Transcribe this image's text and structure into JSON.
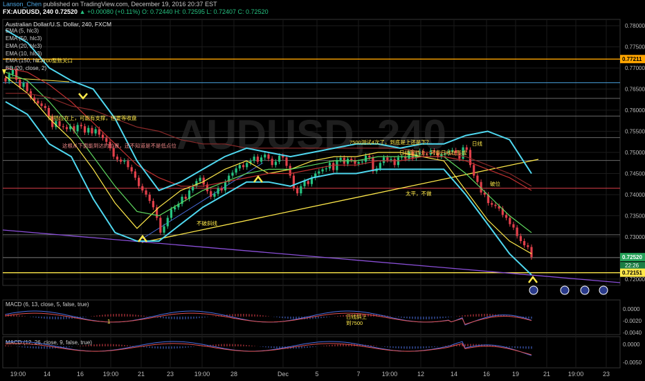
{
  "header": {
    "author": "Lanson_Chen",
    "published": "published on TradingView.com, December 19, 2016 20:37 EST",
    "symbol": "FX:AUDUSD, 240",
    "last": "0.72520",
    "change": "+0.00080 (+0.11%)",
    "ohlc": "O: 0.72440 H: 0.72595 L: 0.72407 C: 0.72520"
  },
  "main_pane": {
    "title": "Australian Dollar/U.S. Dollar, 240, FXCM",
    "indicators": [
      "EMA (5, hlc3)",
      "EMA (50, hlc3)",
      "EMA (20, hlc3)",
      "EMA (10, hlc3)",
      "EMA (150, hlc3)",
      "BB (20, close, 2)"
    ],
    "watermark": "AUDUSD, 240"
  },
  "macd1": {
    "label": "MACD (6, 13, close, 5, false, true)",
    "ticks": [
      "0.0000",
      "-0.0020",
      "-0.0040"
    ]
  },
  "macd2": {
    "label": "MACD (12, 26, close, 9, false, true)",
    "ticks": [
      "0.0000",
      "-0.0050"
    ]
  },
  "annotations": {
    "a1": "0.7700整数关口",
    "a2": "阻挡位在上，可能有支撑，但要等收盘",
    "a3": "这根从下面能到达的位置，还不知道是不是低点位",
    "a4": "7500测试4次了，到底是上还是下？",
    "a5": "日线阻挡上，可能日线在形成",
    "a6": "太平，不做",
    "a7": "破位",
    "a8": "不破斜线",
    "a9": "日线",
    "a10": "日线斜上",
    "a11": "到7500",
    "a12": "1"
  },
  "price_labels": {
    "current": "0.72520",
    "countdown": "22:26",
    "level_top": "0.77211",
    "level_bottom": "0.72151"
  },
  "colors": {
    "up": "#26c281",
    "down": "#e0404a",
    "bb": "#4fd8f0",
    "yellow": "#ffe94a",
    "orange": "#ffa500",
    "purple": "#8a4fd8"
  },
  "chart_data": {
    "type": "line",
    "title": "Australian Dollar/U.S. Dollar, 240, FXCM",
    "y_ticks": [
      0.78,
      0.775,
      0.77,
      0.765,
      0.76,
      0.755,
      0.75,
      0.745,
      0.74,
      0.735,
      0.73,
      0.725,
      0.72
    ],
    "ylim": [
      0.7185,
      0.7815
    ],
    "x_ticks": [
      "19:00",
      "14",
      "16",
      "19:00",
      "21",
      "23",
      "19:00",
      "28",
      "Dec",
      "5",
      "7",
      "19:00",
      "12",
      "14",
      "16",
      "19",
      "21",
      "19:00",
      "23",
      "26"
    ],
    "series": [
      {
        "type": "candles",
        "values": [
          0.7668,
          0.7685,
          0.7697,
          0.7672,
          0.7655,
          0.7664,
          0.7645,
          0.763,
          0.7622,
          0.7616,
          0.761,
          0.7605,
          0.7585,
          0.756,
          0.7574,
          0.7562,
          0.756,
          0.7555,
          0.7562,
          0.755,
          0.7565,
          0.7562,
          0.7547,
          0.7558,
          0.7545,
          0.7555,
          0.7542,
          0.7534,
          0.7525,
          0.751,
          0.749,
          0.7483,
          0.7478,
          0.748,
          0.7465,
          0.7455,
          0.744,
          0.742,
          0.741,
          0.74,
          0.7385,
          0.737,
          0.7345,
          0.731,
          0.7325,
          0.7345,
          0.7365,
          0.737,
          0.7378,
          0.7395,
          0.739,
          0.741,
          0.742,
          0.7432,
          0.744,
          0.7424,
          0.7408,
          0.7395,
          0.7402,
          0.7415,
          0.741,
          0.743,
          0.7445,
          0.7452,
          0.7462,
          0.747,
          0.7465,
          0.7475,
          0.748,
          0.749,
          0.7478,
          0.7488,
          0.7495,
          0.7485,
          0.747,
          0.7478,
          0.7492,
          0.7488,
          0.7468,
          0.7445,
          0.7415,
          0.7403,
          0.742,
          0.7432,
          0.7425,
          0.744,
          0.745,
          0.7455,
          0.746,
          0.7462,
          0.7475,
          0.7458,
          0.7482,
          0.7487,
          0.7473,
          0.7485,
          0.7482,
          0.7473,
          0.7477,
          0.7478,
          0.7492,
          0.7488,
          0.7455,
          0.7462,
          0.7475,
          0.7488,
          0.7482,
          0.7484,
          0.747,
          0.7488,
          0.749,
          0.7485,
          0.7502,
          0.7486,
          0.7496,
          0.7503,
          0.7496,
          0.7495,
          0.7504,
          0.75,
          0.749,
          0.7495,
          0.7498,
          0.7502,
          0.7505,
          0.7498,
          0.7485,
          0.7512,
          0.7506,
          0.747,
          0.7445,
          0.743,
          0.7405,
          0.74,
          0.738,
          0.7376,
          0.7373,
          0.7367,
          0.7352,
          0.7345,
          0.733,
          0.7322,
          0.7302,
          0.729,
          0.728,
          0.7276,
          0.7252
        ]
      },
      {
        "name": "EMA 5",
        "type": "line",
        "values": [
          0.768,
          0.764,
          0.758,
          0.753,
          0.746,
          0.738,
          0.732,
          0.737,
          0.741,
          0.743,
          0.746,
          0.748,
          0.745,
          0.746,
          0.748,
          0.749,
          0.749,
          0.75,
          0.75,
          0.749,
          0.748,
          0.741,
          0.734,
          0.729,
          0.726
        ]
      },
      {
        "name": "EMA 20",
        "type": "line",
        "values": [
          0.769,
          0.767,
          0.762,
          0.756,
          0.749,
          0.742,
          0.736,
          0.735,
          0.738,
          0.741,
          0.743,
          0.745,
          0.746,
          0.746,
          0.747,
          0.748,
          0.748,
          0.749,
          0.749,
          0.749,
          0.749,
          0.745,
          0.74,
          0.735,
          0.731
        ]
      },
      {
        "name": "EMA 50",
        "type": "line",
        "values": [
          0.77,
          0.769,
          0.766,
          0.762,
          0.757,
          0.752,
          0.747,
          0.744,
          0.742,
          0.742,
          0.743,
          0.744,
          0.745,
          0.745,
          0.746,
          0.747,
          0.747,
          0.748,
          0.748,
          0.749,
          0.749,
          0.748,
          0.746,
          0.744,
          0.741
        ]
      },
      {
        "name": "EMA 150",
        "type": "line",
        "values": [
          0.764,
          0.764,
          0.763,
          0.761,
          0.76,
          0.758,
          0.756,
          0.755,
          0.753,
          0.752,
          0.752,
          0.751,
          0.751,
          0.751,
          0.751,
          0.751,
          0.751,
          0.751,
          0.751,
          0.75,
          0.75,
          0.749,
          0.747,
          0.745,
          0.742
        ]
      },
      {
        "name": "BB upper",
        "type": "line",
        "values": [
          0.779,
          0.776,
          0.77,
          0.767,
          0.765,
          0.758,
          0.748,
          0.741,
          0.743,
          0.746,
          0.749,
          0.751,
          0.75,
          0.749,
          0.75,
          0.751,
          0.752,
          0.752,
          0.751,
          0.752,
          0.752,
          0.754,
          0.755,
          0.753,
          0.745
        ]
      },
      {
        "name": "BB lower",
        "type": "line",
        "values": [
          0.762,
          0.759,
          0.752,
          0.749,
          0.739,
          0.731,
          0.729,
          0.729,
          0.733,
          0.737,
          0.74,
          0.743,
          0.743,
          0.742,
          0.744,
          0.745,
          0.745,
          0.746,
          0.746,
          0.746,
          0.746,
          0.74,
          0.733,
          0.726,
          0.721
        ]
      }
    ],
    "horizontal_levels": [
      0.7721,
      0.7665,
      0.7628,
      0.7586,
      0.7535,
      0.7481,
      0.7415,
      0.7305,
      0.7251,
      0.7215
    ],
    "grid": true
  }
}
